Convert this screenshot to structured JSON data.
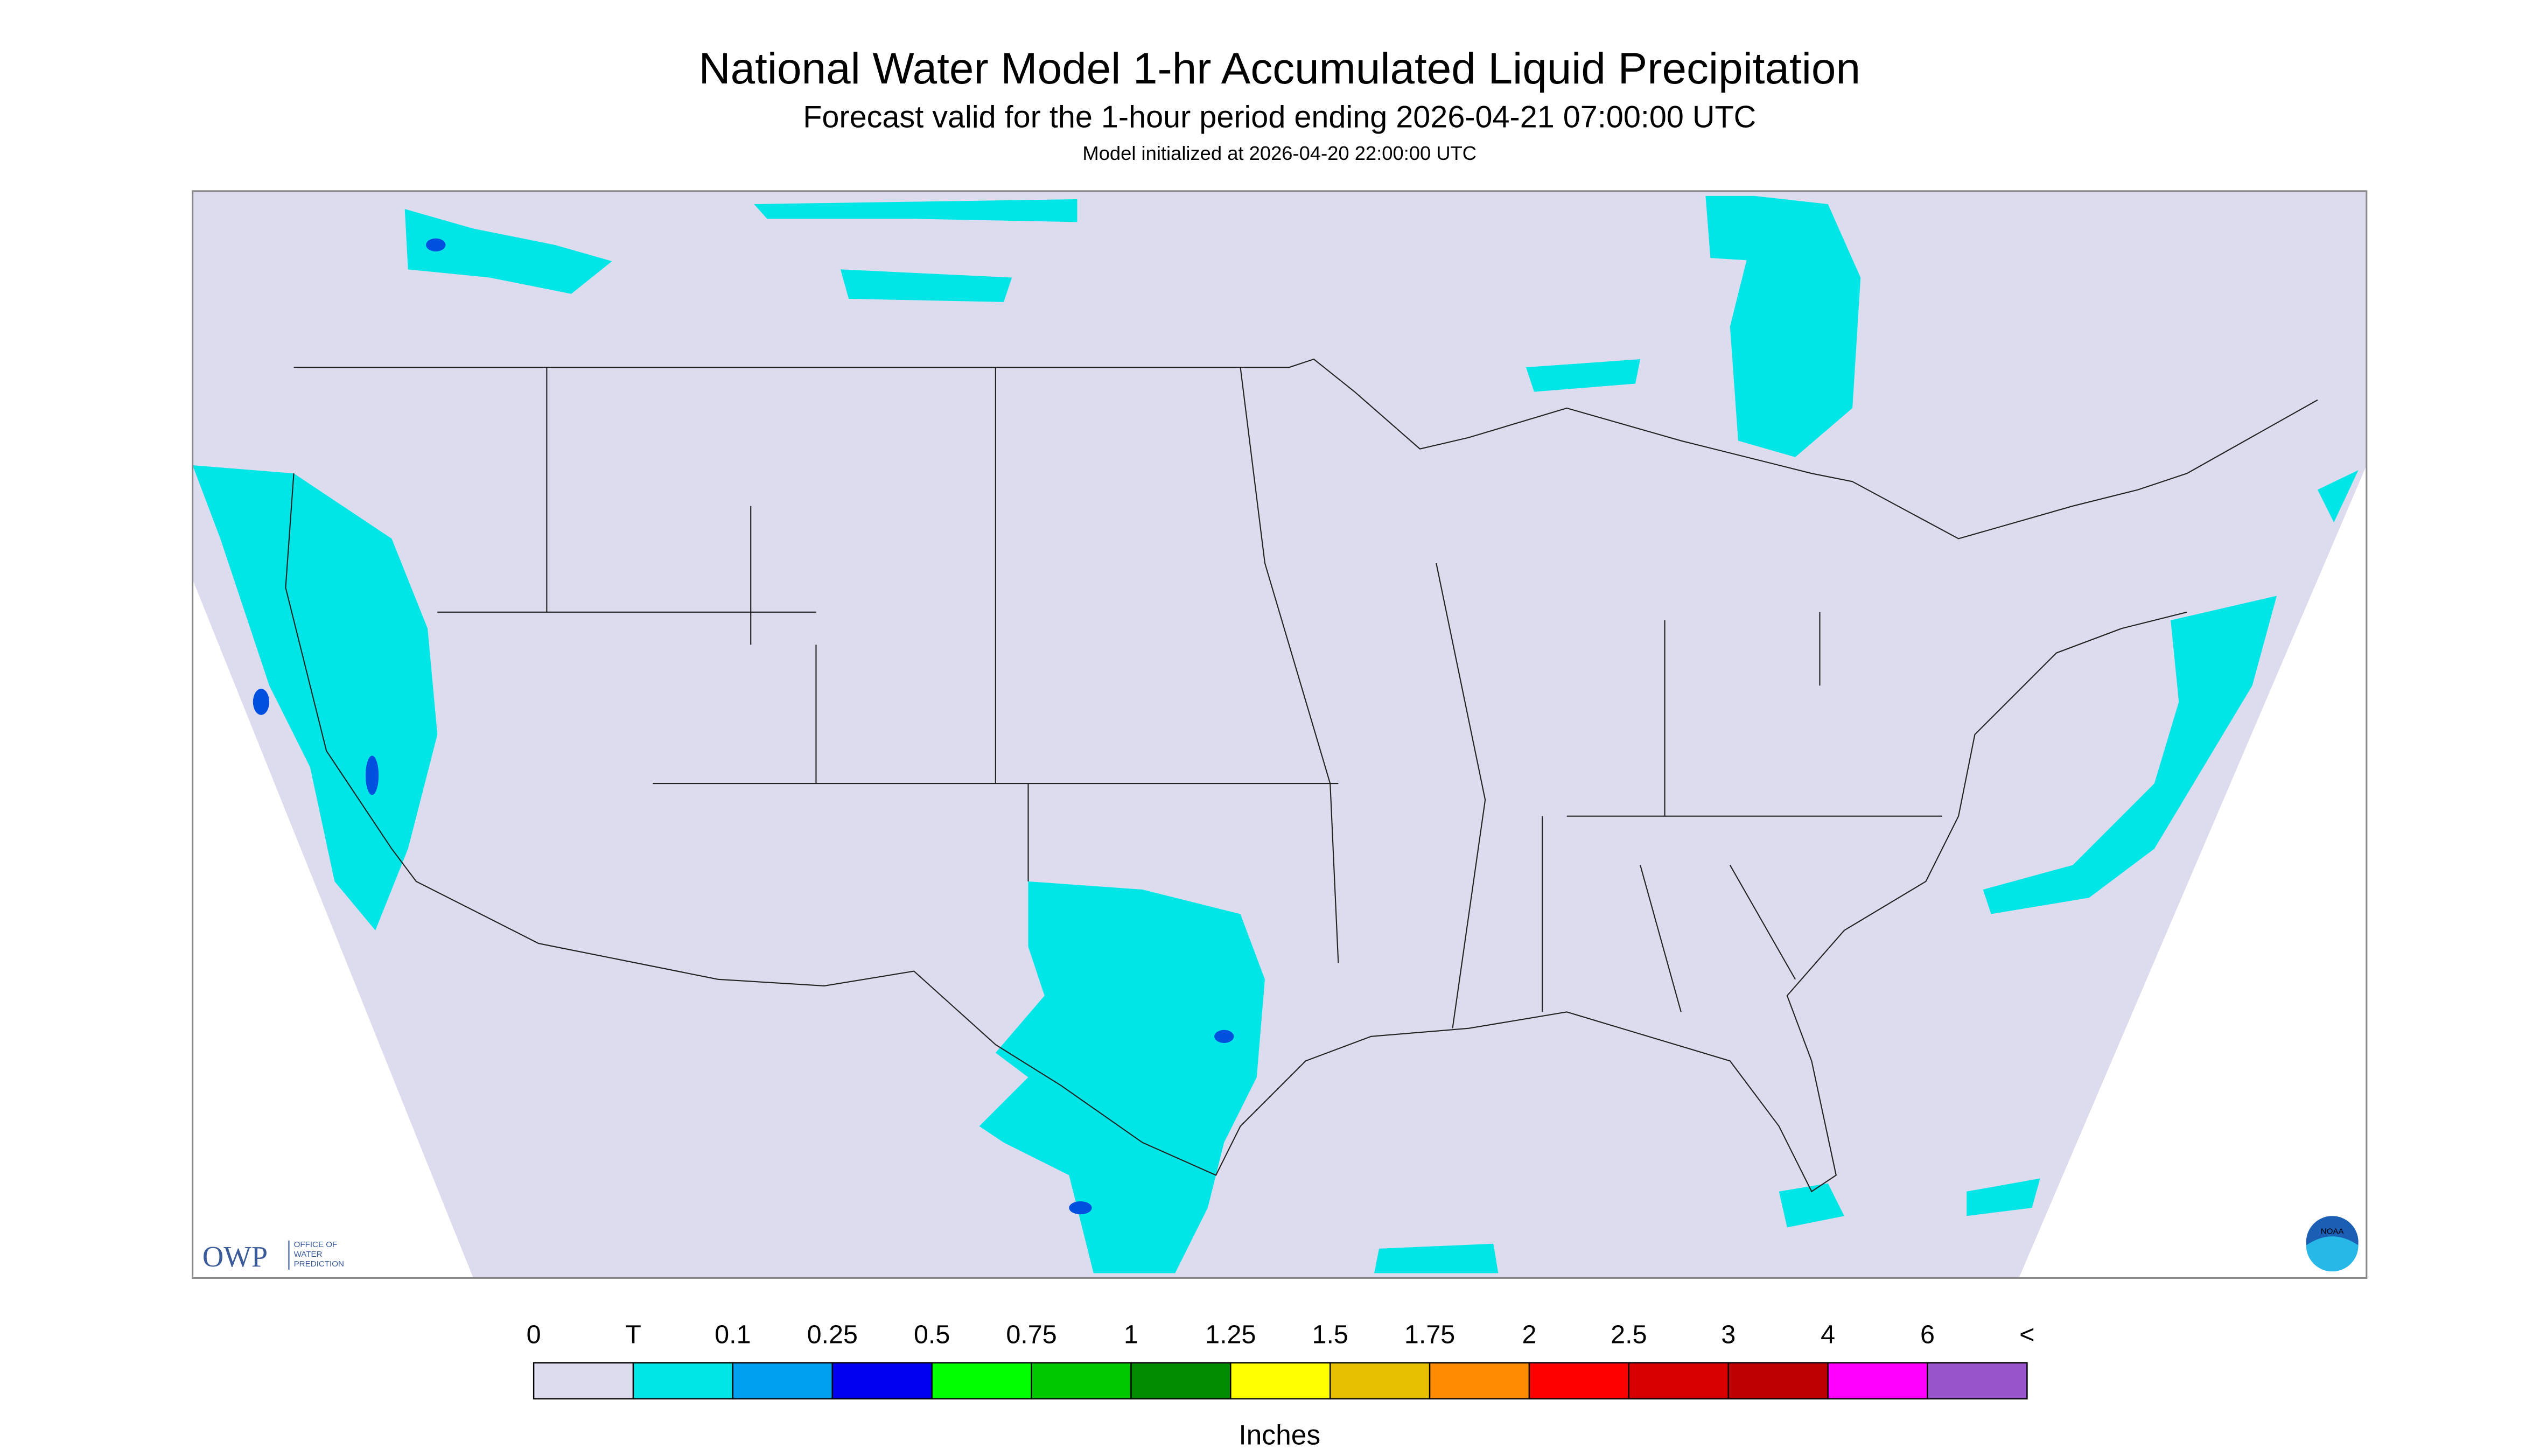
{
  "header": {
    "title": "National Water Model 1-hr Accumulated Liquid Precipitation",
    "subtitle": "Forecast valid for the 1-hour period ending 2026-04-21 07:00:00 UTC",
    "init": "Model initialized at 2026-04-20 22:00:00 UTC"
  },
  "logos": {
    "owp": "OWP",
    "owp_text": [
      "OFFICE OF",
      "WATER",
      "PREDICTION"
    ],
    "noaa": "NOAA"
  },
  "legend": {
    "labels": [
      "0",
      "T",
      "0.1",
      "0.25",
      "0.5",
      "0.75",
      "1",
      "1.25",
      "1.5",
      "1.75",
      "2",
      "2.5",
      "3",
      "4",
      "6",
      "<"
    ],
    "colors": [
      "#dcdcee",
      "#00e6e6",
      "#00a0f0",
      "#0000f0",
      "#00ff00",
      "#00c800",
      "#008c00",
      "#ffff00",
      "#e6c000",
      "#ff8c00",
      "#ff0000",
      "#d80000",
      "#be0000",
      "#ff00ff",
      "#9955cc"
    ],
    "unit": "Inches"
  }
}
